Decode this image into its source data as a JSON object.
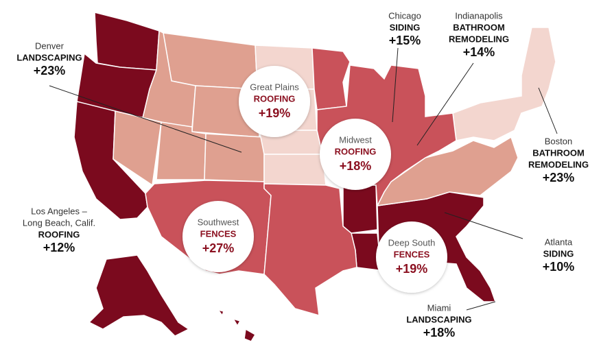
{
  "regions": [
    {
      "name": "Great Plains",
      "category": "ROOFING",
      "change": "+19%"
    },
    {
      "name": "Midwest",
      "category": "ROOFING",
      "change": "+18%"
    },
    {
      "name": "Southwest",
      "category": "FENCES",
      "change": "+27%"
    },
    {
      "name": "Deep South",
      "category": "FENCES",
      "change": "+19%"
    }
  ],
  "callouts": [
    {
      "city": [
        "Denver"
      ],
      "category": [
        "LANDSCAPING"
      ],
      "change": "+23%"
    },
    {
      "city": [
        "Chicago"
      ],
      "category": [
        "SIDING"
      ],
      "change": "+15%"
    },
    {
      "city": [
        "Indianapolis"
      ],
      "category": [
        "BATHROOM",
        "REMODELING"
      ],
      "change": "+14%"
    },
    {
      "city": [
        "Boston"
      ],
      "category": [
        "BATHROOM",
        "REMODELING"
      ],
      "change": "+23%"
    },
    {
      "city": [
        "Los Angeles –",
        "Long Beach, Calif."
      ],
      "category": [
        "ROOFING"
      ],
      "change": "+12%"
    },
    {
      "city": [
        "Atlanta"
      ],
      "category": [
        "SIDING"
      ],
      "change": "+10%"
    },
    {
      "city": [
        "Miami"
      ],
      "category": [
        "LANDSCAPING"
      ],
      "change": "+18%"
    }
  ]
}
